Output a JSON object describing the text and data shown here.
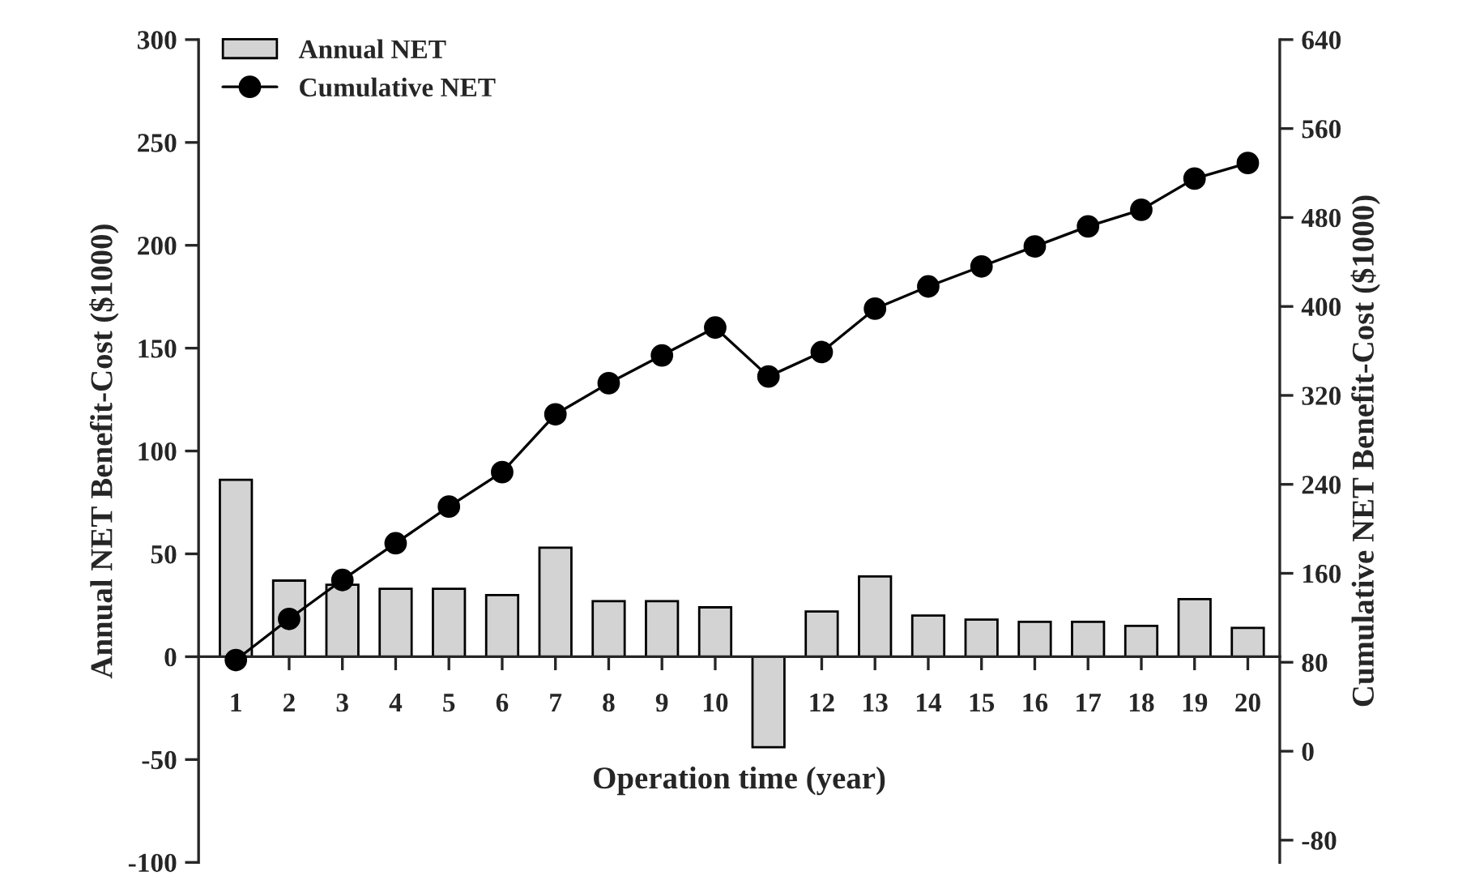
{
  "chart_data": {
    "type": "bar",
    "xlabel": "Operation time (year)",
    "ylabel": "Annual NET Benefit-Cost ($1000)",
    "y2label": "Cumulative NET Benefit-Cost ($1000)",
    "categories": [
      "1",
      "2",
      "3",
      "4",
      "5",
      "6",
      "7",
      "8",
      "9",
      "10",
      null,
      "12",
      "13",
      "14",
      "15",
      "16",
      "17",
      "18",
      "19",
      "20"
    ],
    "series": [
      {
        "name": "Annual NET",
        "color": "#d3d3d3",
        "values": [
          86,
          37,
          35,
          33,
          33,
          30,
          53,
          27,
          27,
          24,
          -44,
          22,
          39,
          20,
          18,
          17,
          17,
          15,
          28,
          14
        ]
      },
      {
        "name": "Cumulative NET",
        "type": "line",
        "axis": "y2",
        "color": "#000000",
        "marker": "circle",
        "values": [
          82,
          119,
          154,
          187,
          220,
          251,
          303,
          331,
          356,
          381,
          337,
          359,
          398,
          418,
          436,
          454,
          472,
          487,
          515,
          529
        ]
      }
    ],
    "ylim": [
      -100,
      300
    ],
    "yticks": [
      -100,
      -50,
      0,
      50,
      100,
      150,
      200,
      250,
      300
    ],
    "y2lim": [
      -100,
      640
    ],
    "y2ticks": [
      -80,
      0,
      80,
      160,
      240,
      320,
      400,
      480,
      560,
      640
    ],
    "legend": "top left",
    "grid": false
  }
}
